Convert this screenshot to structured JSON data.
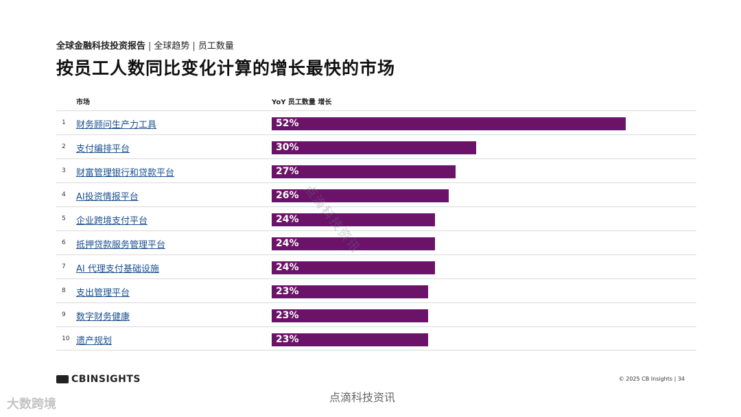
{
  "header": {
    "breadcrumb_main": "全球金融科技投资报告",
    "breadcrumb_sep": "|",
    "breadcrumb_2": "全球趋势",
    "breadcrumb_3": "员工数量",
    "title": "按员工人数同比变化计算的增长最快的市场"
  },
  "chart_data": {
    "type": "bar",
    "orientation": "horizontal",
    "column_market": "市场",
    "column_growth": "YoY 员工数量 增长",
    "ranks": [
      "1",
      "2",
      "3",
      "4",
      "5",
      "6",
      "7",
      "8",
      "9",
      "10"
    ],
    "categories": [
      "财务顾问生产力工具",
      "支付编排平台",
      "财富管理银行和贷款平台",
      "AI投资情报平台",
      "企业跨境支付平台",
      "抵押贷款服务管理平台",
      "AI 代理支付基础设施",
      "支出管理平台",
      "数字财务健康",
      "遗产规划"
    ],
    "values": [
      52,
      30,
      27,
      26,
      24,
      24,
      24,
      23,
      23,
      23
    ],
    "value_labels": [
      "52%",
      "30%",
      "27%",
      "26%",
      "24%",
      "24%",
      "24%",
      "23%",
      "23%",
      "23%"
    ],
    "xlim": [
      0,
      60
    ],
    "bar_color": "#6b1368",
    "link_color": "#1a4e8c"
  },
  "footer": {
    "logo_text": "CBINSIGHTS",
    "copyright": "© 2025 CB Insights | 34"
  },
  "watermarks": {
    "diagonal": "点滴科技资讯",
    "bottom": "点滴科技资讯",
    "corner": "大数跨境"
  }
}
